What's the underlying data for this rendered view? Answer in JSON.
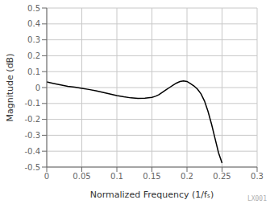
{
  "chart_data": {
    "type": "line",
    "xlabel": "Normalized Frequency (1/fₛ)",
    "ylabel": "Magnitude (dB)",
    "x": [
      0.0,
      0.005,
      0.01,
      0.02,
      0.03,
      0.04,
      0.05,
      0.06,
      0.07,
      0.08,
      0.09,
      0.1,
      0.11,
      0.12,
      0.13,
      0.14,
      0.15,
      0.155,
      0.16,
      0.165,
      0.17,
      0.175,
      0.18,
      0.185,
      0.19,
      0.195,
      0.2,
      0.205,
      0.21,
      0.215,
      0.22,
      0.225,
      0.23,
      0.235,
      0.24,
      0.245,
      0.25
    ],
    "values": [
      0.035,
      0.03,
      0.025,
      0.016,
      0.008,
      0.002,
      -0.005,
      -0.012,
      -0.02,
      -0.03,
      -0.04,
      -0.05,
      -0.058,
      -0.065,
      -0.068,
      -0.067,
      -0.062,
      -0.055,
      -0.045,
      -0.03,
      -0.015,
      0.0,
      0.015,
      0.028,
      0.038,
      0.042,
      0.038,
      0.025,
      0.01,
      -0.01,
      -0.04,
      -0.085,
      -0.15,
      -0.23,
      -0.32,
      -0.41,
      -0.475
    ],
    "color": "#000000",
    "xlim": [
      0,
      0.3
    ],
    "ylim": [
      -0.5,
      0.5
    ],
    "xticks": [
      0,
      0.05,
      0.1,
      0.15,
      0.2,
      0.25,
      0.3
    ],
    "yticks": [
      -0.5,
      -0.4,
      -0.3,
      -0.2,
      -0.1,
      0,
      0.1,
      0.2,
      0.3,
      0.4,
      0.5
    ],
    "grid": true,
    "annotations": [
      {
        "text": "LX001",
        "color": "#b0b0b0"
      }
    ]
  }
}
